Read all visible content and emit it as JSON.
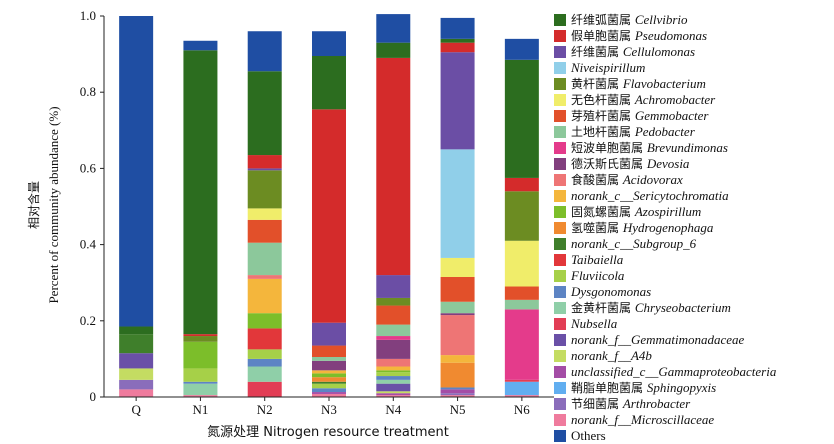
{
  "chart_data": {
    "type": "bar",
    "stacked": true,
    "xlabel": "氮源处理 Nitrogen resource treatment",
    "ylabel_cn": "相对含量",
    "ylabel_en": "Percent of community abundance (%)",
    "ylim": [
      0,
      1.0
    ],
    "yticks": [
      "0",
      "0.2",
      "0.4",
      "0.6",
      "0.8",
      "1.0"
    ],
    "categories": [
      "Q",
      "N1",
      "N2",
      "N3",
      "N4",
      "N5",
      "N6"
    ],
    "series": [
      {
        "name": "norank_f__Microscillaceae",
        "cn": "",
        "color": "#ef7b9d",
        "values": [
          0.02,
          0.005,
          0.0,
          0.008,
          0.005,
          0.005,
          0.005
        ]
      },
      {
        "name": "Arthrobacter",
        "cn": "节细菌属",
        "color": "#8a6dbb",
        "values": [
          0.025,
          0.0,
          0.0,
          0.0,
          0.0,
          0.005,
          0.0
        ]
      },
      {
        "name": "Sphingopyxis",
        "cn": "鞘脂单胞菌属",
        "color": "#61aef0",
        "values": [
          0.0,
          0.0,
          0.0,
          0.0,
          0.0,
          0.0,
          0.035
        ]
      },
      {
        "name": "unclassified_c__Gammaproteobacteria",
        "cn": "",
        "color": "#a44da6",
        "values": [
          0.0,
          0.0,
          0.0,
          0.005,
          0.005,
          0.01,
          0.0
        ]
      },
      {
        "name": "norank_f__A4b",
        "cn": "",
        "color": "#c4dc62",
        "values": [
          0.03,
          0.0,
          0.0,
          0.0,
          0.005,
          0.0,
          0.0
        ]
      },
      {
        "name": "norank_f__Gemmatimonadaceae",
        "cn": "",
        "color": "#6a50a7",
        "values": [
          0.04,
          0.0,
          0.0,
          0.0,
          0.02,
          0.0,
          0.0
        ]
      },
      {
        "name": "Nubsella",
        "cn": "",
        "color": "#e23d55",
        "values": [
          0.0,
          0.0,
          0.04,
          0.0,
          0.0,
          0.0,
          0.005
        ]
      },
      {
        "name": "Chryseobacterium",
        "cn": "金黄杆菌属",
        "color": "#8fcfa8",
        "values": [
          0.0,
          0.03,
          0.04,
          0.0,
          0.01,
          0.0,
          0.0
        ]
      },
      {
        "name": "Dysgonomonas",
        "cn": "",
        "color": "#5d84c4",
        "values": [
          0.0,
          0.005,
          0.02,
          0.01,
          0.01,
          0.005,
          0.0
        ]
      },
      {
        "name": "Fluviicola",
        "cn": "",
        "color": "#a6d048",
        "values": [
          0.0,
          0.035,
          0.025,
          0.012,
          0.01,
          0.0,
          0.0
        ]
      },
      {
        "name": "Taibaiella",
        "cn": "",
        "color": "#e2373a",
        "values": [
          0.0,
          0.0,
          0.055,
          0.0,
          0.0,
          0.0,
          0.0
        ]
      },
      {
        "name": "norank_c__Subgroup_6",
        "cn": "",
        "color": "#3f7f2b",
        "values": [
          0.05,
          0.0,
          0.0,
          0.005,
          0.0,
          0.0,
          0.0
        ]
      },
      {
        "name": "Hydrogenophaga",
        "cn": "氢噬菌属",
        "color": "#f08a30",
        "values": [
          0.0,
          0.0,
          0.0,
          0.012,
          0.0,
          0.065,
          0.0
        ]
      },
      {
        "name": "Azospirillum",
        "cn": "固氮螺菌属",
        "color": "#7cbe2a",
        "values": [
          0.0,
          0.07,
          0.04,
          0.01,
          0.005,
          0.0,
          0.0
        ]
      },
      {
        "name": "norank_c__Sericytochromatia",
        "cn": "",
        "color": "#f4b63c",
        "values": [
          0.0,
          0.0,
          0.09,
          0.008,
          0.01,
          0.02,
          0.0
        ]
      },
      {
        "name": "Acidovorax",
        "cn": "食酸菌属",
        "color": "#ee7575",
        "values": [
          0.0,
          0.0,
          0.01,
          0.0,
          0.02,
          0.105,
          0.0
        ]
      },
      {
        "name": "Devosia",
        "cn": "德沃斯氏菌属",
        "color": "#823f7e",
        "values": [
          0.0,
          0.0,
          0.0,
          0.025,
          0.05,
          0.005,
          0.0
        ]
      },
      {
        "name": "Brevundimonas",
        "cn": "短波单胞菌属",
        "color": "#e43b8b",
        "values": [
          0.0,
          0.0,
          0.0,
          0.0,
          0.01,
          0.0,
          0.185
        ]
      },
      {
        "name": "Pedobacter",
        "cn": "土地杆菌属",
        "color": "#8cc89b",
        "values": [
          0.0,
          0.0,
          0.085,
          0.01,
          0.03,
          0.03,
          0.025
        ]
      },
      {
        "name": "Gemmobacter",
        "cn": "芽殖杆菌属",
        "color": "#e2502a",
        "values": [
          0.0,
          0.0,
          0.06,
          0.03,
          0.05,
          0.065,
          0.035
        ]
      },
      {
        "name": "Achromobacter",
        "cn": "无色杆菌属",
        "color": "#f0ed6a",
        "values": [
          0.0,
          0.0,
          0.03,
          0.0,
          0.0,
          0.05,
          0.12
        ]
      },
      {
        "name": "Flavobacterium",
        "cn": "黄杆菌属",
        "color": "#6c8c22",
        "values": [
          0.0,
          0.015,
          0.1,
          0.0,
          0.02,
          0.0,
          0.13
        ]
      },
      {
        "name": "Niveispirillum",
        "cn": "",
        "color": "#90cfe9",
        "values": [
          0.0,
          0.0,
          0.0,
          0.0,
          0.0,
          0.285,
          0.0
        ]
      },
      {
        "name": "Cellulomonas",
        "cn": "纤维菌属",
        "color": "#6b4ea5",
        "values": [
          0.0,
          0.0,
          0.005,
          0.06,
          0.06,
          0.255,
          0.0
        ]
      },
      {
        "name": "Pseudomonas",
        "cn": "假单胞菌属",
        "color": "#d42b2b",
        "values": [
          0.0,
          0.005,
          0.035,
          0.56,
          0.57,
          0.025,
          0.035
        ]
      },
      {
        "name": "Cellvibrio",
        "cn": "纤维弧菌属",
        "color": "#2c6d1f",
        "values": [
          0.02,
          0.745,
          0.22,
          0.14,
          0.04,
          0.01,
          0.31
        ]
      },
      {
        "name": "Others",
        "cn": "",
        "color": "#1f4ea3",
        "values": [
          0.815,
          0.025,
          0.105,
          0.065,
          0.075,
          0.055,
          0.055
        ]
      }
    ]
  },
  "legend": [
    {
      "cn": "纤维弧菌属",
      "name": "Cellvibrio",
      "color": "#2c6d1f",
      "italic": true
    },
    {
      "cn": "假单胞菌属",
      "name": "Pseudomonas",
      "color": "#d42b2b",
      "italic": true
    },
    {
      "cn": "纤维菌属",
      "name": "Cellulomonas",
      "color": "#6b4ea5",
      "italic": true
    },
    {
      "cn": "",
      "name": "Niveispirillum",
      "color": "#90cfe9",
      "italic": true
    },
    {
      "cn": "黄杆菌属",
      "name": "Flavobacterium",
      "color": "#6c8c22",
      "italic": true
    },
    {
      "cn": "无色杆菌属",
      "name": "Achromobacter",
      "color": "#f0ed6a",
      "italic": true
    },
    {
      "cn": "芽殖杆菌属",
      "name": "Gemmobacter",
      "color": "#e2502a",
      "italic": true
    },
    {
      "cn": "土地杆菌属",
      "name": "Pedobacter",
      "color": "#8cc89b",
      "italic": true
    },
    {
      "cn": "短波单胞菌属",
      "name": "Brevundimonas",
      "color": "#e43b8b",
      "italic": true
    },
    {
      "cn": "德沃斯氏菌属",
      "name": "Devosia",
      "color": "#823f7e",
      "italic": true
    },
    {
      "cn": "食酸菌属",
      "name": "Acidovorax",
      "color": "#ee7575",
      "italic": true
    },
    {
      "cn": "",
      "name": "norank_c__Sericytochromatia",
      "color": "#f4b63c",
      "italic": true
    },
    {
      "cn": "固氮螺菌属",
      "name": "Azospirillum",
      "color": "#7cbe2a",
      "italic": true
    },
    {
      "cn": "氢噬菌属",
      "name": "Hydrogenophaga",
      "color": "#f08a30",
      "italic": true
    },
    {
      "cn": "",
      "name": "norank_c__Subgroup_6",
      "color": "#3f7f2b",
      "italic": true
    },
    {
      "cn": "",
      "name": "Taibaiella",
      "color": "#e2373a",
      "italic": true
    },
    {
      "cn": "",
      "name": "Fluviicola",
      "color": "#a6d048",
      "italic": true
    },
    {
      "cn": "",
      "name": "Dysgonomonas",
      "color": "#5d84c4",
      "italic": true
    },
    {
      "cn": "金黄杆菌属",
      "name": "Chryseobacterium",
      "color": "#8fcfa8",
      "italic": true
    },
    {
      "cn": "",
      "name": "Nubsella",
      "color": "#e23d55",
      "italic": true
    },
    {
      "cn": "",
      "name": "norank_f__Gemmatimonadaceae",
      "color": "#6a50a7",
      "italic": true
    },
    {
      "cn": "",
      "name": "norank_f__A4b",
      "color": "#c4dc62",
      "italic": true
    },
    {
      "cn": "",
      "name": "unclassified_c__Gammaproteobacteria",
      "color": "#a44da6",
      "italic": true
    },
    {
      "cn": "鞘脂单胞菌属",
      "name": "Sphingopyxis",
      "color": "#61aef0",
      "italic": true
    },
    {
      "cn": "节细菌属",
      "name": "Arthrobacter",
      "color": "#8a6dbb",
      "italic": true
    },
    {
      "cn": "",
      "name": "norank_f__Microscillaceae",
      "color": "#ef7b9d",
      "italic": true
    },
    {
      "cn": "",
      "name": "Others",
      "color": "#1f4ea3",
      "italic": false
    }
  ]
}
